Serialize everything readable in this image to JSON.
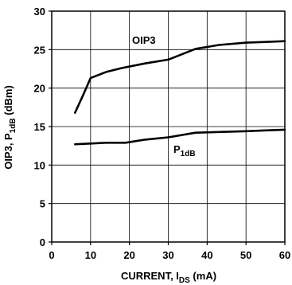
{
  "chart_data": {
    "type": "line",
    "xlabel": {
      "main": "CURRENT, I",
      "sub": "DS",
      "unit": " (mA)"
    },
    "ylabel": {
      "pre": "OIP3, P",
      "sub": "1dB",
      "unit": " (dBm)"
    },
    "xlim": [
      0,
      60
    ],
    "ylim": [
      0,
      30
    ],
    "x_ticks": [
      0,
      10,
      20,
      30,
      40,
      50,
      60
    ],
    "y_ticks": [
      0,
      5,
      10,
      15,
      20,
      25,
      30
    ],
    "x_tick_labels": [
      "0",
      "10",
      "20",
      "30",
      "40",
      "50",
      "60"
    ],
    "y_tick_labels": [
      "0",
      "5",
      "10",
      "15",
      "20",
      "25",
      "30"
    ],
    "grid": true,
    "legend": "none",
    "series": [
      {
        "name": "OIP3",
        "label_main": "OIP3",
        "label_sub": "",
        "x": [
          6,
          8,
          10,
          14,
          18,
          24,
          30,
          37,
          43,
          50,
          55,
          60
        ],
        "y": [
          16.8,
          19.0,
          21.3,
          22.1,
          22.6,
          23.2,
          23.7,
          25.1,
          25.6,
          25.9,
          26.0,
          26.1
        ]
      },
      {
        "name": "P1dB",
        "label_main": "P",
        "label_sub": "1dB",
        "x": [
          6,
          10,
          14,
          19,
          24,
          30,
          37,
          43,
          50,
          55,
          60
        ],
        "y": [
          12.7,
          12.8,
          12.9,
          12.9,
          13.3,
          13.6,
          14.2,
          14.3,
          14.4,
          14.5,
          14.6
        ]
      }
    ]
  }
}
